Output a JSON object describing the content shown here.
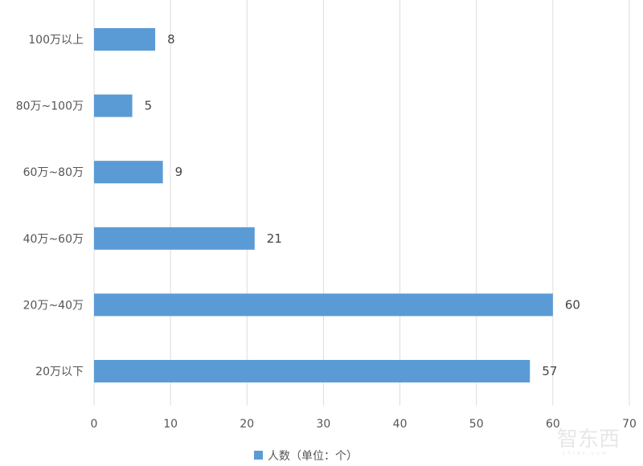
{
  "chart_data": {
    "type": "bar",
    "orientation": "horizontal",
    "categories": [
      "100万以上",
      "80万~100万",
      "60万~80万",
      "40万~60万",
      "20万~40万",
      "20万以下"
    ],
    "series": [
      {
        "name": "人数（单位：个）",
        "values": [
          8,
          5,
          9,
          21,
          60,
          57
        ]
      }
    ],
    "xlim": [
      0,
      70
    ],
    "xticks": [
      0,
      10,
      20,
      30,
      40,
      50,
      60,
      70
    ],
    "grid": true,
    "legend": "bottom",
    "data_labels": true,
    "colors": {
      "bar": "#5b9bd5",
      "grid": "#dddddd",
      "text": "#555555"
    }
  },
  "watermark": {
    "text": "智东西",
    "sub": "zhidx.com"
  }
}
